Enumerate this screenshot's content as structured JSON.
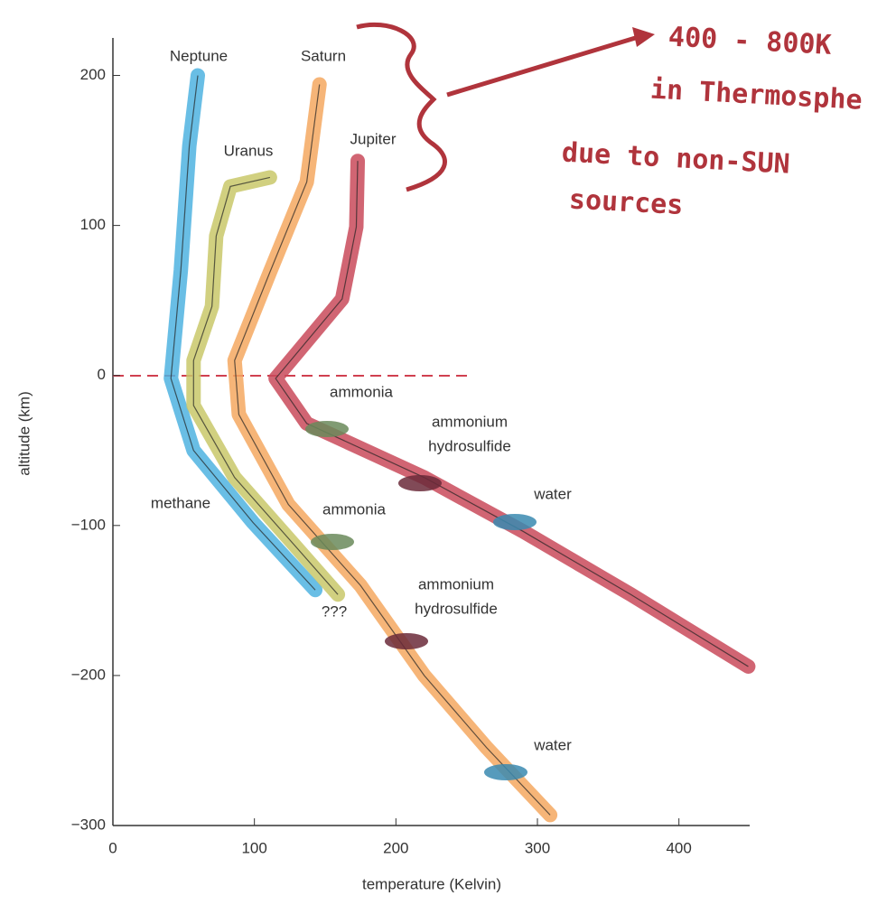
{
  "chart_data": {
    "type": "line",
    "x_label": "temperature (Kelvin)",
    "y_label": "altitude (km)",
    "xlim": [
      0,
      450
    ],
    "ylim": [
      -300,
      225
    ],
    "xticks": [
      0,
      100,
      200,
      300,
      400
    ],
    "yticks": [
      {
        "value": -300,
        "label": "−300"
      },
      {
        "value": -200,
        "label": "−200"
      },
      {
        "value": -100,
        "label": "−100"
      },
      0,
      100,
      200
    ],
    "series": [
      {
        "name": "Neptune",
        "color": "#4fb3e0",
        "x": [
          60,
          54,
          48,
          41,
          57,
          99,
          143
        ],
        "values": [
          200,
          153,
          70,
          -2,
          -50,
          -98,
          -143
        ]
      },
      {
        "name": "Uranus",
        "color": "#c9c86a",
        "x": [
          111,
          83,
          73,
          70,
          57,
          57,
          86,
          131,
          159
        ],
        "values": [
          132,
          126,
          93,
          46,
          10,
          -20,
          -68,
          -116,
          -146
        ]
      },
      {
        "name": "Saturn",
        "color": "#f5a860",
        "x": [
          146,
          137,
          111,
          86,
          89,
          124,
          175,
          220,
          264,
          309
        ],
        "values": [
          194,
          129,
          69,
          10,
          -26,
          -86,
          -140,
          -200,
          -248,
          -293
        ]
      },
      {
        "name": "Jupiter",
        "color": "#c94a5a",
        "x": [
          173,
          172,
          162,
          115,
          137,
          220,
          290,
          366,
          449
        ],
        "values": [
          143,
          99,
          51,
          -2,
          -32,
          -68,
          -104,
          -146,
          -194
        ]
      }
    ],
    "annotations": [
      "ammonia",
      "ammonium",
      "hydrosulfide",
      "water",
      "ammonia",
      "methane",
      "ammonium",
      "hydrosulfide",
      "???",
      "water"
    ],
    "handwritten": [
      "400 - 800K",
      "in Thermosphe",
      "due to non-SUN",
      "sources"
    ]
  }
}
